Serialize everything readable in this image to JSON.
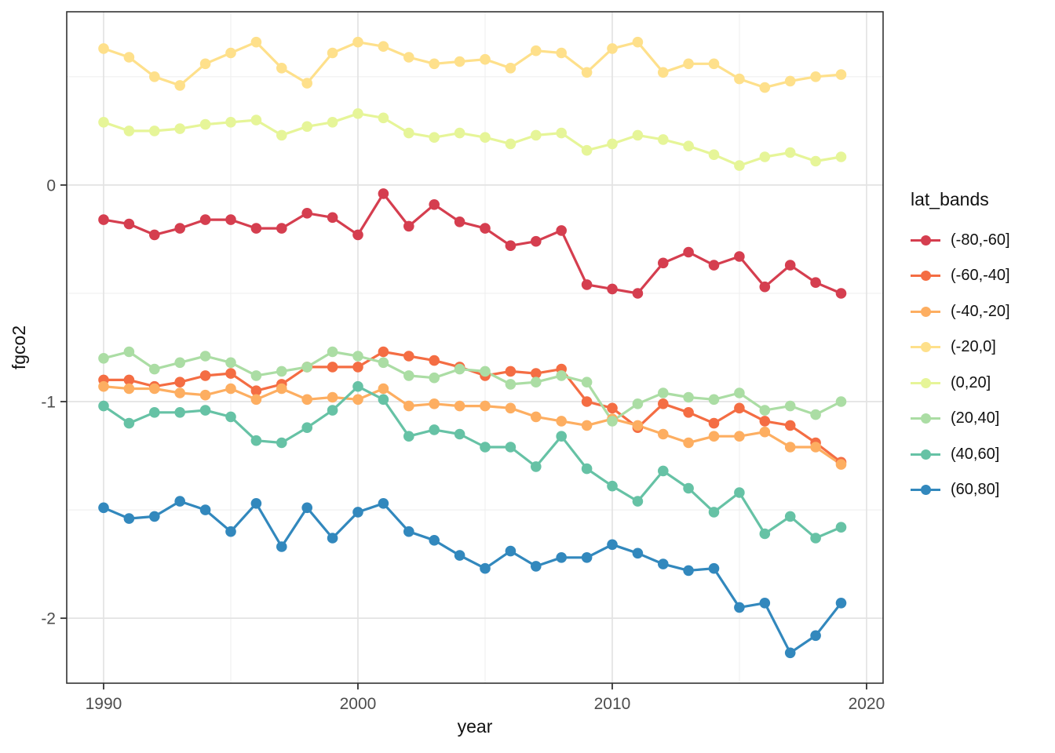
{
  "chart_data": {
    "type": "line",
    "title": "",
    "xlabel": "year",
    "ylabel": "fgco2",
    "legend_title": "lat_bands",
    "legend_position": "right",
    "grid": true,
    "x_ticks": [
      1990,
      2000,
      2010,
      2020
    ],
    "x_tick_labels": [
      "1990",
      "2000",
      "2010",
      "2020"
    ],
    "x_minor_ticks": [
      1995,
      2005,
      2015
    ],
    "y_ticks": [
      0,
      -1,
      -2
    ],
    "y_tick_labels": [
      "0",
      "-1",
      "-2"
    ],
    "y_minor_ticks": [
      0.5,
      -0.5,
      -1.5
    ],
    "xlim": [
      1988.55,
      2020.65
    ],
    "ylim": [
      -2.3,
      0.8
    ],
    "x": [
      1990,
      1991,
      1992,
      1993,
      1994,
      1995,
      1996,
      1997,
      1998,
      1999,
      2000,
      2001,
      2002,
      2003,
      2004,
      2005,
      2006,
      2007,
      2008,
      2009,
      2010,
      2011,
      2012,
      2013,
      2014,
      2015,
      2016,
      2017,
      2018,
      2019
    ],
    "series": [
      {
        "name": "(-80,-60]",
        "color": "#D53E4F",
        "values": [
          -0.16,
          -0.18,
          -0.23,
          -0.2,
          -0.16,
          -0.16,
          -0.2,
          -0.2,
          -0.13,
          -0.15,
          -0.23,
          -0.04,
          -0.19,
          -0.09,
          -0.17,
          -0.2,
          -0.28,
          -0.26,
          -0.21,
          -0.46,
          -0.48,
          -0.5,
          -0.36,
          -0.31,
          -0.37,
          -0.33,
          -0.47,
          -0.37,
          -0.45,
          -0.5
        ]
      },
      {
        "name": "(-60,-40]",
        "color": "#F46D43",
        "values": [
          -0.9,
          -0.9,
          -0.93,
          -0.91,
          -0.88,
          -0.87,
          -0.95,
          -0.92,
          -0.84,
          -0.84,
          -0.84,
          -0.77,
          -0.79,
          -0.81,
          -0.84,
          -0.88,
          -0.86,
          -0.87,
          -0.85,
          -1.0,
          -1.03,
          -1.12,
          -1.01,
          -1.05,
          -1.1,
          -1.03,
          -1.09,
          -1.11,
          -1.19,
          -1.28
        ]
      },
      {
        "name": "(-40,-20]",
        "color": "#FDAE61",
        "values": [
          -0.93,
          -0.94,
          -0.94,
          -0.96,
          -0.97,
          -0.94,
          -0.99,
          -0.94,
          -0.99,
          -0.98,
          -0.99,
          -0.94,
          -1.02,
          -1.01,
          -1.02,
          -1.02,
          -1.03,
          -1.07,
          -1.09,
          -1.11,
          -1.08,
          -1.11,
          -1.15,
          -1.19,
          -1.16,
          -1.16,
          -1.14,
          -1.21,
          -1.21,
          -1.29
        ]
      },
      {
        "name": "(-20,0]",
        "color": "#FEE08B",
        "values": [
          0.63,
          0.59,
          0.5,
          0.46,
          0.56,
          0.61,
          0.66,
          0.54,
          0.47,
          0.61,
          0.66,
          0.64,
          0.59,
          0.56,
          0.57,
          0.58,
          0.54,
          0.62,
          0.61,
          0.52,
          0.63,
          0.66,
          0.52,
          0.56,
          0.56,
          0.49,
          0.45,
          0.48,
          0.5,
          0.51
        ]
      },
      {
        "name": "(0,20]",
        "color": "#E6F598",
        "values": [
          0.29,
          0.25,
          0.25,
          0.26,
          0.28,
          0.29,
          0.3,
          0.23,
          0.27,
          0.29,
          0.33,
          0.31,
          0.24,
          0.22,
          0.24,
          0.22,
          0.19,
          0.23,
          0.24,
          0.16,
          0.19,
          0.23,
          0.21,
          0.18,
          0.14,
          0.09,
          0.13,
          0.15,
          0.11,
          0.13
        ]
      },
      {
        "name": "(20,40]",
        "color": "#ABDDA4",
        "values": [
          -0.8,
          -0.77,
          -0.85,
          -0.82,
          -0.79,
          -0.82,
          -0.88,
          -0.86,
          -0.84,
          -0.77,
          -0.79,
          -0.82,
          -0.88,
          -0.89,
          -0.85,
          -0.86,
          -0.92,
          -0.91,
          -0.88,
          -0.91,
          -1.09,
          -1.01,
          -0.96,
          -0.98,
          -0.99,
          -0.96,
          -1.04,
          -1.02,
          -1.06,
          -1.0
        ]
      },
      {
        "name": "(40,60]",
        "color": "#66C2A5",
        "values": [
          -1.02,
          -1.1,
          -1.05,
          -1.05,
          -1.04,
          -1.07,
          -1.18,
          -1.19,
          -1.12,
          -1.04,
          -0.93,
          -0.99,
          -1.16,
          -1.13,
          -1.15,
          -1.21,
          -1.21,
          -1.3,
          -1.16,
          -1.31,
          -1.39,
          -1.46,
          -1.32,
          -1.4,
          -1.51,
          -1.42,
          -1.61,
          -1.53,
          -1.63,
          -1.58
        ]
      },
      {
        "name": "(60,80]",
        "color": "#3288BD",
        "values": [
          -1.49,
          -1.54,
          -1.53,
          -1.46,
          -1.5,
          -1.6,
          -1.47,
          -1.67,
          -1.49,
          -1.63,
          -1.51,
          -1.47,
          -1.6,
          -1.64,
          -1.71,
          -1.77,
          -1.69,
          -1.76,
          -1.72,
          -1.72,
          -1.66,
          -1.7,
          -1.75,
          -1.78,
          -1.77,
          -1.95,
          -1.93,
          -2.16,
          -2.08,
          -1.93
        ]
      }
    ],
    "style": {
      "panel_background": "#ffffff",
      "panel_border": "#333333",
      "grid_major": "#e3e3e3",
      "grid_minor": "#efefef",
      "tick_color": "#333333",
      "tick_label_color": "#4d4d4d",
      "text_color": "#111111"
    }
  }
}
